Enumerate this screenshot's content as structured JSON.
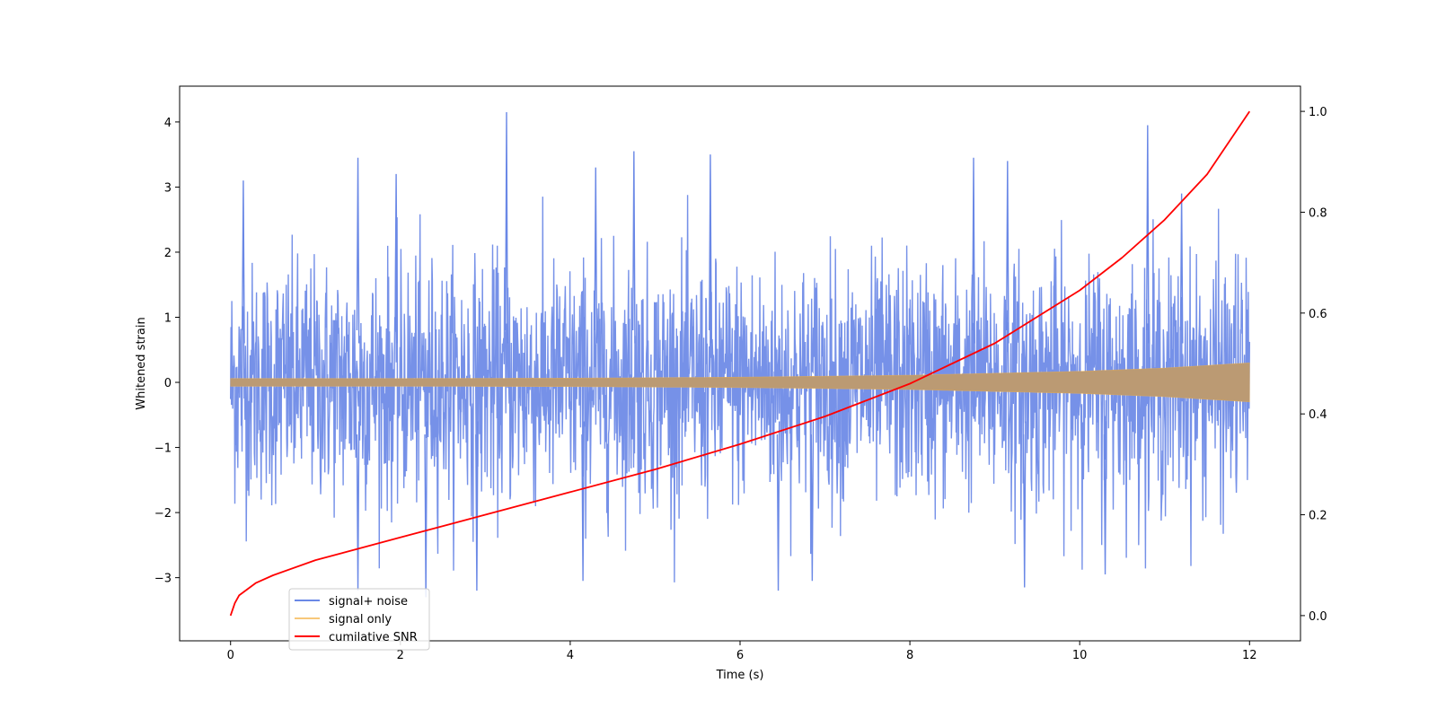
{
  "chart_data": {
    "type": "line",
    "title": "",
    "xlabel": "Time (s)",
    "ylabel": "Whitened strain",
    "y2label": "",
    "xlim": [
      -0.6,
      12.6
    ],
    "ylim": [
      -3.97,
      4.55
    ],
    "y2lim": [
      -0.05,
      1.05
    ],
    "x_ticks": [
      0,
      2,
      4,
      6,
      8,
      10,
      12
    ],
    "y_ticks": [
      -3,
      -2,
      -1,
      0,
      1,
      2,
      3,
      4
    ],
    "y2_ticks": [
      0.0,
      0.2,
      0.4,
      0.6,
      0.8,
      1.0
    ],
    "x_tick_labels": [
      "0",
      "2",
      "4",
      "6",
      "8",
      "10",
      "12"
    ],
    "y_tick_labels": [
      "−3",
      "−2",
      "−1",
      "0",
      "1",
      "2",
      "3",
      "4"
    ],
    "y2_tick_labels": [
      "0.0",
      "0.2",
      "0.4",
      "0.6",
      "0.8",
      "1.0"
    ],
    "grid": false,
    "legend_position": "lower-left",
    "series": [
      {
        "name": "signal+ noise",
        "axis": "left",
        "color": "#6a88e6",
        "description_values": {
          "x_range": [
            0,
            12
          ],
          "approx_max": 4.15,
          "approx_min": -3.2
        },
        "peaks": [
          [
            0.15,
            3.1
          ],
          [
            1.5,
            3.45
          ],
          [
            1.95,
            3.2
          ],
          [
            3.25,
            4.15
          ],
          [
            4.3,
            3.3
          ],
          [
            4.75,
            3.55
          ],
          [
            5.65,
            3.5
          ],
          [
            8.75,
            3.45
          ],
          [
            9.15,
            3.4
          ],
          [
            10.8,
            3.95
          ],
          [
            11.2,
            2.9
          ]
        ],
        "troughs": [
          [
            1.5,
            -3.2
          ],
          [
            2.3,
            -3.3
          ],
          [
            2.9,
            -3.2
          ],
          [
            4.15,
            -3.05
          ],
          [
            6.45,
            -3.2
          ],
          [
            6.85,
            -3.05
          ],
          [
            9.35,
            -3.15
          ],
          [
            10.3,
            -2.95
          ]
        ]
      },
      {
        "name": "signal only",
        "axis": "left",
        "color": "#f5b041",
        "envelope": {
          "t": [
            0,
            2,
            4,
            6,
            8,
            10,
            11,
            12
          ],
          "amp": [
            0.06,
            0.06,
            0.065,
            0.08,
            0.11,
            0.17,
            0.22,
            0.3
          ]
        }
      },
      {
        "name": "cumilative SNR",
        "axis": "right",
        "color": "#ff0000",
        "x": [
          0,
          0.05,
          0.1,
          0.3,
          0.5,
          1,
          2,
          3,
          4,
          5,
          6,
          7,
          8,
          9,
          10,
          10.5,
          11,
          11.5,
          12
        ],
        "values": [
          0.0,
          0.025,
          0.04,
          0.065,
          0.08,
          0.11,
          0.155,
          0.2,
          0.245,
          0.29,
          0.34,
          0.395,
          0.46,
          0.54,
          0.645,
          0.71,
          0.785,
          0.875,
          1.0
        ]
      }
    ]
  }
}
